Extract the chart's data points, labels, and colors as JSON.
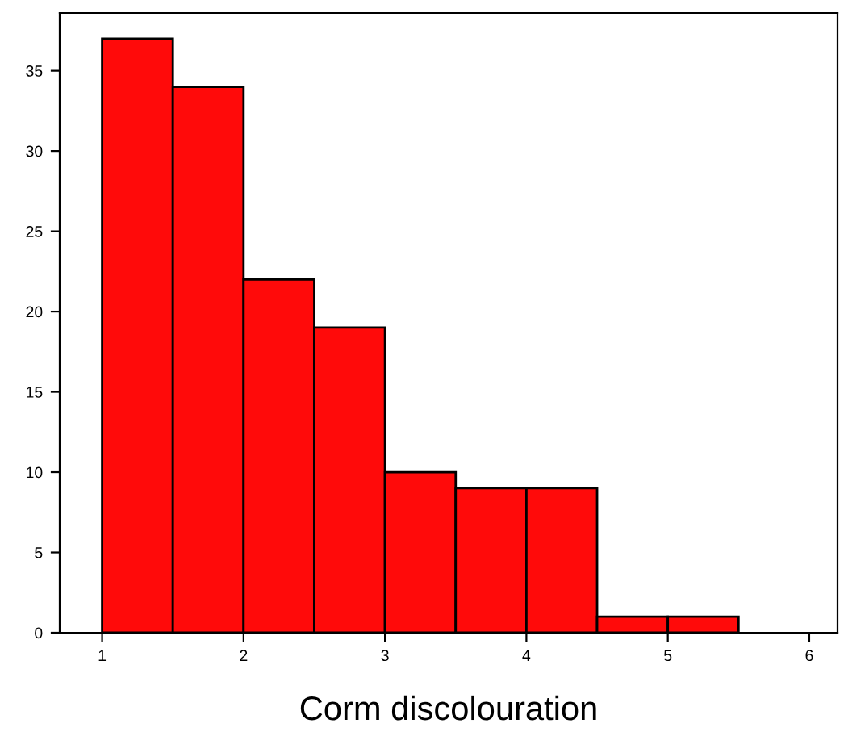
{
  "chart_data": {
    "type": "histogram",
    "xlabel": "Corm discolouration",
    "bins": [
      1,
      1.5,
      2,
      2.5,
      3,
      3.5,
      4,
      4.5,
      5,
      5.5
    ],
    "values": [
      37,
      34,
      22,
      19,
      10,
      9,
      9,
      1,
      1
    ],
    "color": "#ff0a0a",
    "xlim": [
      0.7,
      6.2
    ],
    "xticks": [
      1,
      2,
      3,
      4,
      5,
      6
    ],
    "ylim": [
      0,
      38.6
    ],
    "yticks": [
      0,
      5,
      10,
      15,
      20,
      25,
      30,
      35
    ],
    "grid": false
  }
}
